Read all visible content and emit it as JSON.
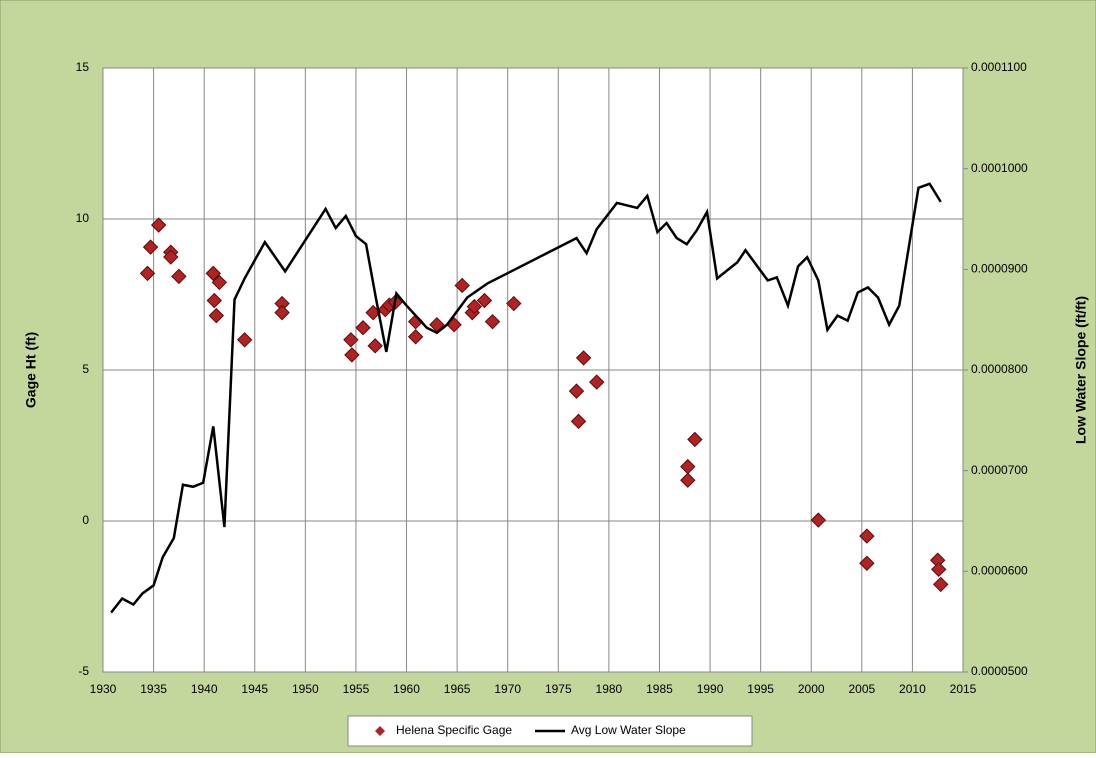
{
  "chart_data": {
    "type": "scatter_line",
    "ylabel": "Gage Ht (ft)",
    "y2label": "Low Water Slope (ft/ft)",
    "xlim": [
      1930,
      2015
    ],
    "xticks": [
      1930,
      1935,
      1940,
      1945,
      1950,
      1955,
      1960,
      1965,
      1970,
      1975,
      1980,
      1985,
      1990,
      1995,
      2000,
      2005,
      2010,
      2015
    ],
    "ylim": [
      -5,
      15
    ],
    "yticks": [
      -5,
      0,
      5,
      10,
      15
    ],
    "y2lim": [
      5e-05,
      0.00011
    ],
    "y2ticks": [
      {
        "value": 5e-05,
        "label": "0.0000500"
      },
      {
        "value": 6e-05,
        "label": "0.0000600"
      },
      {
        "value": 7e-05,
        "label": "0.0000700"
      },
      {
        "value": 8e-05,
        "label": "0.0000800"
      },
      {
        "value": 9e-05,
        "label": "0.0000900"
      },
      {
        "value": 0.0001,
        "label": "0.0001000"
      },
      {
        "value": 0.00011,
        "label": "0.0001100"
      }
    ],
    "grid": true,
    "series": [
      {
        "name": "Helena Specific Gage",
        "color": "#b22222",
        "kind": "scatter",
        "x": [
          1934.4,
          1934.7,
          1935.5,
          1936.7,
          1936.7,
          1937.5,
          1940.9,
          1941.0,
          1941.5,
          1941.2,
          1944.0,
          1947.7,
          1947.7,
          1954.5,
          1954.6,
          1955.7,
          1956.7,
          1956.9,
          1957.9,
          1958.3,
          1958.9,
          1960.9,
          1960.9,
          1963.0,
          1964.7,
          1965.5,
          1966.5,
          1966.7,
          1967.7,
          1968.5,
          1970.6,
          1976.8,
          1977.0,
          1977.5,
          1978.8,
          1987.8,
          1987.8,
          1988.5,
          2000.7,
          2005.5,
          2005.5,
          2012.5,
          2012.6,
          2012.8
        ],
        "values": [
          8.2,
          9.07,
          9.8,
          8.9,
          8.74,
          8.1,
          8.2,
          7.3,
          7.9,
          6.8,
          6.0,
          7.2,
          6.9,
          6.0,
          5.5,
          6.4,
          6.9,
          5.8,
          7.0,
          7.15,
          7.25,
          6.6,
          6.1,
          6.5,
          6.5,
          7.8,
          6.9,
          7.1,
          7.3,
          6.6,
          7.2,
          4.3,
          3.3,
          5.4,
          4.6,
          1.8,
          1.35,
          2.7,
          0.03,
          -0.5,
          -1.4,
          -1.3,
          -1.6,
          -2.1
        ]
      },
      {
        "name": "Avg Low Water Slope",
        "color": "#000000",
        "kind": "line",
        "axis": "y2",
        "x": [
          1930.8,
          1931.9,
          1933.0,
          1933.9,
          1935.0,
          1935.9,
          1937.0,
          1937.9,
          1938.9,
          1939.9,
          1940.9,
          1942.0,
          1943.0,
          1944.0,
          1946.0,
          1948.0,
          1952.0,
          1953.0,
          1954.0,
          1955.0,
          1956.0,
          1957.0,
          1958.0,
          1959.0,
          1960.0,
          1962.0,
          1963.0,
          1964.0,
          1966.0,
          1968.0,
          1976.8,
          1977.8,
          1978.8,
          1980.8,
          1982.8,
          1983.8,
          1984.8,
          1985.7,
          1986.7,
          1987.7,
          1988.7,
          1989.7,
          1990.7,
          1992.7,
          1993.5,
          1995.7,
          1996.6,
          1997.7,
          1998.7,
          1999.6,
          2000.7,
          2001.6,
          2002.6,
          2003.6,
          2004.6,
          2005.6,
          2006.6,
          2007.7,
          2008.7,
          2010.6,
          2011.7,
          2012.8
        ],
        "values": [
          5.59e-05,
          5.73e-05,
          5.67e-05,
          5.78e-05,
          5.86e-05,
          6.14e-05,
          6.33e-05,
          6.86e-05,
          6.84e-05,
          6.88e-05,
          7.44e-05,
          6.44e-05,
          8.7e-05,
          8.91e-05,
          9.27e-05,
          8.98e-05,
          9.6e-05,
          9.41e-05,
          9.53e-05,
          9.33e-05,
          9.25e-05,
          8.7e-05,
          8.18e-05,
          8.76e-05,
          8.64e-05,
          8.42e-05,
          8.37e-05,
          8.45e-05,
          8.72e-05,
          8.86e-05,
          9.31e-05,
          9.16e-05,
          9.4e-05,
          9.66e-05,
          9.61e-05,
          9.73e-05,
          9.37e-05,
          9.46e-05,
          9.31e-05,
          9.25e-05,
          9.39e-05,
          9.57e-05,
          8.91e-05,
          9.07e-05,
          9.19e-05,
          8.89e-05,
          8.92e-05,
          8.64e-05,
          9.03e-05,
          9.12e-05,
          8.89e-05,
          8.4e-05,
          8.54e-05,
          8.49e-05,
          8.77e-05,
          8.82e-05,
          8.72e-05,
          8.45e-05,
          8.64e-05,
          9.81e-05,
          9.85e-05,
          9.67e-05
        ]
      }
    ]
  }
}
